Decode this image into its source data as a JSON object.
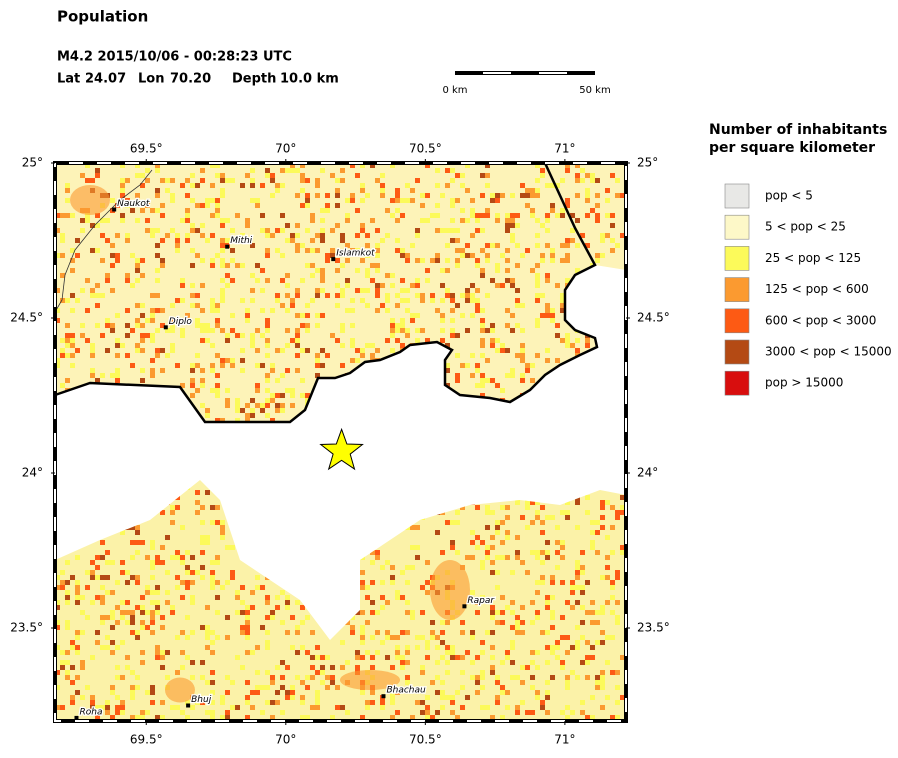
{
  "header": {
    "title": "Population",
    "event": "M4.2  2015/10/06 - 00:28:23 UTC",
    "lat_label": "Lat",
    "lat": 24.07,
    "lon_label": "Lon",
    "lon": {
      "value": 70.2,
      "label": "70.20"
    },
    "depth_label": "Depth",
    "depth": {
      "value": 10,
      "label": "10.0 km"
    }
  },
  "scale_bar": {
    "start": "0 km",
    "end": "50 km"
  },
  "map": {
    "xlim": [
      69.173,
      71.219
    ],
    "ylim": [
      23.2,
      25
    ],
    "xticks": [
      {
        "value": 69.5,
        "label": "69.5°"
      },
      {
        "value": 70,
        "label": "70°"
      },
      {
        "value": 70.5,
        "label": "70.5°"
      },
      {
        "value": 71,
        "label": "71°"
      }
    ],
    "yticks": [
      {
        "value": 25,
        "label": "25°"
      },
      {
        "value": 24.5,
        "label": "24.5°"
      },
      {
        "value": 24,
        "label": "24°"
      },
      {
        "value": 23.5,
        "label": "23.5°"
      }
    ],
    "cities": [
      {
        "name": "Naukot",
        "lon": 69.385,
        "lat": 24.85
      },
      {
        "name": "Mithi",
        "lon": 69.79,
        "lat": 24.73
      },
      {
        "name": "Islamkot",
        "lon": 70.17,
        "lat": 24.69
      },
      {
        "name": "Diplo",
        "lon": 69.57,
        "lat": 24.47
      },
      {
        "name": "Rapar",
        "lon": 70.64,
        "lat": 23.57
      },
      {
        "name": "Bhachau",
        "lon": 70.35,
        "lat": 23.28
      },
      {
        "name": "Bhuj",
        "lon": 69.65,
        "lat": 23.25
      },
      {
        "name": "Roha",
        "lon": 69.25,
        "lat": 23.21
      }
    ]
  },
  "legend": {
    "title": [
      "Number of inhabitants",
      "per square kilometer"
    ],
    "items": [
      {
        "label": "pop < 5",
        "color": "#e8e8e6"
      },
      {
        "label": "5 < pop < 25",
        "color": "#fdf8c8"
      },
      {
        "label": "25 < pop < 125",
        "color": "#fcfa5a"
      },
      {
        "label": "125 < pop < 600",
        "color": "#fb9a30"
      },
      {
        "label": "600 < pop < 3000",
        "color": "#fd5a14"
      },
      {
        "label": "3000 < pop < 15000",
        "color": "#b44a14"
      },
      {
        "label": "pop > 15000",
        "color": "#d80e0e"
      }
    ]
  }
}
